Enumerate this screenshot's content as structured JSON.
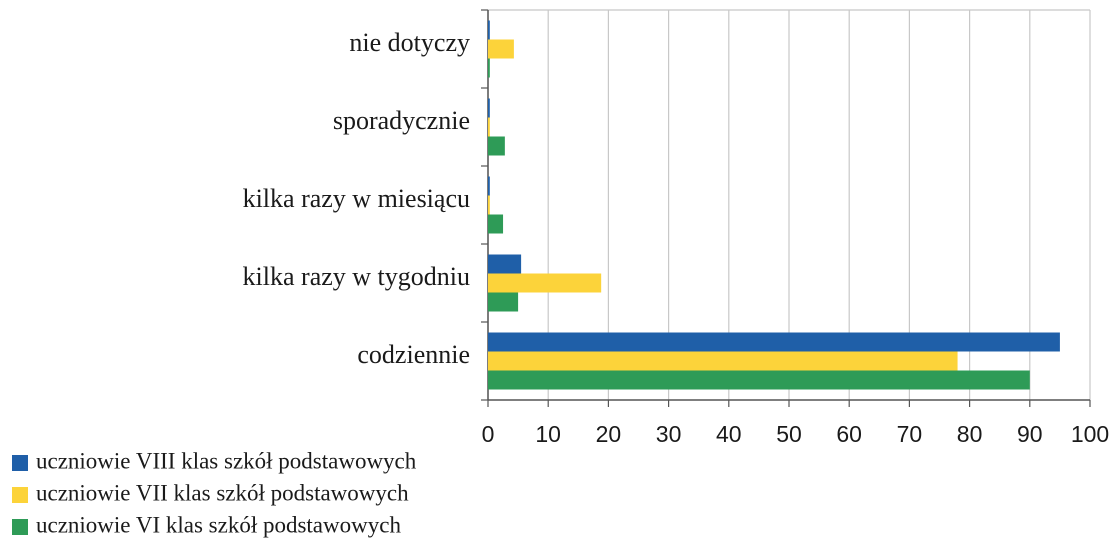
{
  "chart_data": {
    "type": "barh",
    "categories": [
      "nie dotyczy",
      "sporadycznie",
      "kilka razy w miesiącu",
      "kilka razy w tygodniu",
      "codziennie"
    ],
    "series": [
      {
        "name": "uczniowie VIII klas szkół podstawowych",
        "color": "#1f5fa8",
        "values": [
          0.3,
          0.3,
          0.3,
          5.5,
          95
        ]
      },
      {
        "name": "uczniowie VII klas szkół podstawowych",
        "color": "#fcd33a",
        "values": [
          4.3,
          0.3,
          0.3,
          18.8,
          78
        ]
      },
      {
        "name": "uczniowie VI klas szkół podstawowych",
        "color": "#2e9b57",
        "values": [
          0.3,
          2.8,
          2.5,
          5,
          90
        ]
      }
    ],
    "xlim": [
      0,
      100
    ],
    "xticks": [
      0,
      10,
      20,
      30,
      40,
      50,
      60,
      70,
      80,
      90,
      100
    ],
    "grid": true,
    "legend": "bottom-left"
  }
}
